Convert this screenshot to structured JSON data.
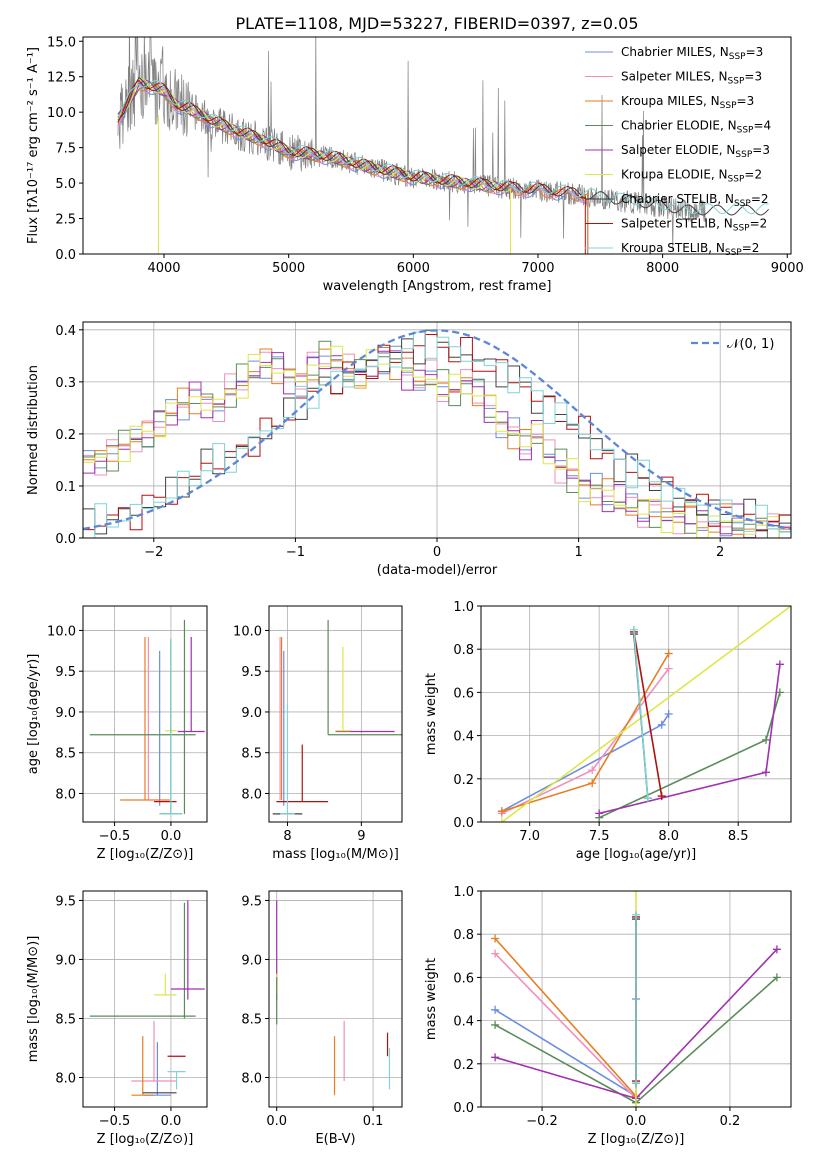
{
  "colors": [
    "#6b8de0",
    "#f08fbd",
    "#e67e22",
    "#5a8c5a",
    "#a030b0",
    "#dfe64a",
    "#404040",
    "#b01010",
    "#7fd4d4"
  ],
  "chart_data": [
    {
      "id": "spectrum",
      "type": "line",
      "title": "PLATE=1108, MJD=53227, FIBERID=0397, z=0.05",
      "xlabel": "wavelength [Angstrom, rest frame]",
      "ylabel": "Flux [fλ10⁻¹⁷ erg cm⁻² s⁻¹ A⁻¹]",
      "xlim": [
        3350,
        9030
      ],
      "ylim": [
        0,
        15.3
      ],
      "xticks": [
        4000,
        5000,
        6000,
        7000,
        8000,
        9000
      ],
      "yticks": [
        0.0,
        2.5,
        5.0,
        7.5,
        10.0,
        12.5,
        15.0
      ],
      "ytick_labels": [
        "0.0",
        "2.5",
        "5.0",
        "7.5",
        "10.0",
        "12.5",
        "15.0"
      ],
      "grid": false,
      "legend_position": "top-right",
      "data_color": "#808080",
      "continuum": {
        "x": [
          3630,
          3700,
          3800,
          3900,
          4000,
          4100,
          4200,
          4300,
          4400,
          4600,
          4800,
          5000,
          5200,
          5400,
          5600,
          5800,
          6000,
          6200,
          6400,
          6600,
          6800,
          7000,
          7200,
          7400,
          7600,
          7800,
          8000,
          8200
        ],
        "y": [
          9.5,
          10.5,
          12.0,
          11.8,
          11.5,
          10.5,
          10.2,
          9.8,
          9.3,
          8.6,
          8.0,
          7.2,
          7.0,
          6.7,
          6.2,
          5.8,
          5.4,
          5.2,
          5.0,
          4.8,
          4.6,
          4.5,
          4.3,
          4.1,
          3.8,
          3.6,
          3.3,
          3.0
        ]
      },
      "series": [
        {
          "name": "Chabrier MILES, N",
          "sub": "SSP",
          "suffix": "=3",
          "end": 7400
        },
        {
          "name": "Salpeter MILES, N",
          "sub": "SSP",
          "suffix": "=3",
          "end": 7400
        },
        {
          "name": "Kroupa MILES, N",
          "sub": "SSP",
          "suffix": "=3",
          "end": 7400
        },
        {
          "name": "Chabrier ELODIE, N",
          "sub": "SSP",
          "suffix": "=4",
          "end": 6780
        },
        {
          "name": "Salpeter ELODIE, N",
          "sub": "SSP",
          "suffix": "=3",
          "end": 6780
        },
        {
          "name": "Kroupa ELODIE, N",
          "sub": "SSP",
          "suffix": "=2",
          "end": 6780
        },
        {
          "name": "Chabrier STELIB, N",
          "sub": "SSP",
          "suffix": "=2",
          "end": 8850
        },
        {
          "name": "Salpeter STELIB, N",
          "sub": "SSP",
          "suffix": "=2",
          "end": 7380
        },
        {
          "name": "Kroupa STELIB, N",
          "sub": "SSP",
          "suffix": "=2",
          "end": 8850
        }
      ]
    },
    {
      "id": "residuals",
      "type": "line",
      "xlabel": "(data-model)/error",
      "ylabel": "Normed distribution",
      "xlim": [
        -2.5,
        2.5
      ],
      "ylim": [
        0,
        0.415
      ],
      "xticks": [
        -2,
        -1,
        0,
        1,
        2
      ],
      "xtick_labels": [
        "−2",
        "−1",
        "0",
        "1",
        "2"
      ],
      "yticks": [
        0.0,
        0.1,
        0.2,
        0.3,
        0.4
      ],
      "ytick_labels": [
        "0.0",
        "0.1",
        "0.2",
        "0.3",
        "0.4"
      ],
      "grid": true,
      "legend_position": "top-right",
      "normal_label": "𝒩(0, 1)",
      "normal_color": "#5b87d8",
      "group_a": [
        0.15,
        0.15,
        0.16,
        0.18,
        0.19,
        0.2,
        0.22,
        0.24,
        0.26,
        0.27,
        0.26,
        0.25,
        0.28,
        0.3,
        0.32,
        0.34,
        0.33,
        0.31,
        0.3,
        0.33,
        0.35,
        0.34,
        0.32,
        0.31,
        0.33,
        0.35,
        0.34,
        0.32,
        0.3,
        0.31,
        0.29,
        0.28,
        0.3,
        0.28,
        0.25,
        0.22,
        0.2,
        0.18,
        0.2,
        0.16,
        0.14,
        0.12,
        0.1,
        0.09,
        0.08,
        0.07,
        0.06,
        0.05,
        0.05,
        0.04,
        0.04,
        0.04,
        0.03,
        0.03,
        0.03,
        0.03,
        0.02,
        0.02,
        0.02,
        0.02
      ],
      "group_b": [
        0.02,
        0.03,
        0.04,
        0.04,
        0.05,
        0.06,
        0.07,
        0.09,
        0.1,
        0.12,
        0.14,
        0.15,
        0.15,
        0.17,
        0.19,
        0.2,
        0.22,
        0.24,
        0.26,
        0.28,
        0.29,
        0.3,
        0.31,
        0.32,
        0.33,
        0.34,
        0.35,
        0.36,
        0.37,
        0.38,
        0.37,
        0.36,
        0.35,
        0.34,
        0.33,
        0.32,
        0.31,
        0.29,
        0.27,
        0.25,
        0.24,
        0.22,
        0.2,
        0.18,
        0.16,
        0.14,
        0.13,
        0.12,
        0.11,
        0.09,
        0.08,
        0.07,
        0.06,
        0.05,
        0.05,
        0.04,
        0.04,
        0.03,
        0.03,
        0.02
      ]
    },
    {
      "id": "age-vs-Z",
      "type": "scatter",
      "xlabel": "Z [log₁₀(Z/Z⊙)]",
      "ylabel": "age  [log₁₀(age/yr)]",
      "xlim": [
        -0.78,
        0.32
      ],
      "ylim": [
        7.65,
        10.3
      ],
      "xticks": [
        -0.5,
        0.0
      ],
      "xtick_labels": [
        "−0.5",
        "0.0"
      ],
      "yticks": [
        8.0,
        8.5,
        9.0,
        9.5,
        10.0
      ],
      "ytick_labels": [
        "8.0",
        "8.5",
        "9.0",
        "9.5",
        "10.0"
      ],
      "grid": true,
      "points": [
        {
          "c": 0,
          "x": -0.1,
          "y": 8.75,
          "xerr": 0,
          "yerr": [
            7.85,
            9.75
          ]
        },
        {
          "c": 1,
          "x": -0.2,
          "y": 8.75,
          "xerr": 0,
          "yerr": [
            7.92,
            9.92
          ]
        },
        {
          "c": 2,
          "x": -0.23,
          "y": 7.92,
          "xerr": 0.22,
          "yerr": [
            7.92,
            9.92
          ]
        },
        {
          "c": 3,
          "x": -0.25,
          "y": 8.72,
          "xerr": 0.47,
          "yerr": [
            8.72,
            8.72
          ]
        },
        {
          "c": 3,
          "x": 0.12,
          "y": 8.72,
          "xerr": 0.0,
          "yerr": [
            7.75,
            10.13
          ]
        },
        {
          "c": 4,
          "x": 0.18,
          "y": 8.76,
          "xerr": 0.12,
          "yerr": [
            8.76,
            9.92
          ]
        },
        {
          "c": 5,
          "x": 0.0,
          "y": 8.77,
          "xerr": 0.05,
          "yerr": [
            8.77,
            9.85
          ]
        },
        {
          "c": 6,
          "x": 0.0,
          "y": 7.75,
          "xerr": 0.1,
          "yerr": [
            7.75,
            9.9
          ]
        },
        {
          "c": 7,
          "x": -0.05,
          "y": 7.9,
          "xerr": 0.1,
          "yerr": [
            7.9,
            7.9
          ]
        },
        {
          "c": 8,
          "x": 0.0,
          "y": 7.75,
          "xerr": 0.1,
          "yerr": [
            7.75,
            9.9
          ]
        }
      ]
    },
    {
      "id": "age-vs-mass",
      "type": "scatter",
      "xlabel": "mass [log₁₀(M/M⊙)]",
      "xlim": [
        7.75,
        9.55
      ],
      "ylim": [
        7.65,
        10.3
      ],
      "xticks": [
        8,
        9
      ],
      "xtick_labels": [
        "8",
        "9"
      ],
      "yticks": [
        8.0,
        8.5,
        9.0,
        9.5,
        10.0
      ],
      "ytick_labels": [
        "8.0",
        "8.5",
        "9.0",
        "9.5",
        "10.0"
      ],
      "grid": true,
      "points": [
        {
          "c": 0,
          "x": 7.95,
          "y": 7.85,
          "xerr": 0,
          "yerr": [
            7.85,
            9.75
          ]
        },
        {
          "c": 1,
          "x": 7.9,
          "y": 7.92,
          "xerr": 0,
          "yerr": [
            7.92,
            9.92
          ]
        },
        {
          "c": 2,
          "x": 7.92,
          "y": 7.92,
          "xerr": 0,
          "yerr": [
            7.92,
            9.92
          ]
        },
        {
          "c": 3,
          "x": 8.55,
          "y": 8.72,
          "xerr": 0,
          "yerr": [
            8.72,
            10.13
          ]
        },
        {
          "c": 3,
          "x": 9.1,
          "y": 8.72,
          "xerr": 0.55,
          "yerr": [
            8.72,
            8.72
          ]
        },
        {
          "c": 4,
          "x": 9.05,
          "y": 8.76,
          "xerr": 0.4,
          "yerr": [
            8.76,
            8.76
          ]
        },
        {
          "c": 5,
          "x": 8.75,
          "y": 8.77,
          "xerr": 0.1,
          "yerr": [
            8.77,
            9.8
          ]
        },
        {
          "c": 6,
          "x": 8.0,
          "y": 7.75,
          "xerr": 0.2,
          "yerr": [
            7.75,
            7.75
          ]
        },
        {
          "c": 7,
          "x": 8.2,
          "y": 7.9,
          "xerr": 0.35,
          "yerr": [
            7.9,
            8.6
          ]
        },
        {
          "c": 8,
          "x": 8.0,
          "y": 7.75,
          "xerr": 0.1,
          "yerr": [
            7.75,
            9.1
          ]
        }
      ]
    },
    {
      "id": "weight-vs-age",
      "type": "line",
      "xlabel": "age  [log₁₀(age/yr)]",
      "ylabel": "mass weight",
      "xlim": [
        6.65,
        8.88
      ],
      "ylim": [
        0,
        1.0
      ],
      "xticks": [
        7.0,
        7.5,
        8.0,
        8.5
      ],
      "xtick_labels": [
        "7.0",
        "7.5",
        "8.0",
        "8.5"
      ],
      "yticks": [
        0.0,
        0.2,
        0.4,
        0.6,
        0.8,
        1.0
      ],
      "ytick_labels": [
        "0.0",
        "0.2",
        "0.4",
        "0.6",
        "0.8",
        "1.0"
      ],
      "grid": true,
      "series": [
        {
          "c": 0,
          "x": [
            6.8,
            7.95,
            8.0
          ],
          "y": [
            0.05,
            0.45,
            0.5
          ]
        },
        {
          "c": 1,
          "x": [
            6.8,
            7.45,
            8.0
          ],
          "y": [
            0.04,
            0.24,
            0.71
          ]
        },
        {
          "c": 2,
          "x": [
            6.8,
            7.45,
            8.0
          ],
          "y": [
            0.05,
            0.18,
            0.78
          ]
        },
        {
          "c": 3,
          "x": [
            7.5,
            8.7,
            8.8
          ],
          "y": [
            0.02,
            0.38,
            0.6
          ]
        },
        {
          "c": 4,
          "x": [
            7.5,
            8.7,
            8.8
          ],
          "y": [
            0.04,
            0.23,
            0.73
          ]
        },
        {
          "c": 5,
          "x": [
            6.8,
            8.88
          ],
          "y": [
            0.0,
            1.0
          ]
        },
        {
          "c": 6,
          "x": [
            7.75,
            7.85
          ],
          "y": [
            0.87,
            0.11
          ]
        },
        {
          "c": 7,
          "x": [
            7.75,
            7.95
          ],
          "y": [
            0.88,
            0.12
          ]
        },
        {
          "c": 8,
          "x": [
            7.75,
            7.85
          ],
          "y": [
            0.89,
            0.11
          ]
        }
      ]
    },
    {
      "id": "mass-vs-Z",
      "type": "scatter",
      "xlabel": "Z [log₁₀(Z/Z⊙)]",
      "ylabel": "mass [log₁₀(M/M⊙)]",
      "xlim": [
        -0.78,
        0.32
      ],
      "ylim": [
        7.75,
        9.58
      ],
      "xticks": [
        -0.5,
        0.0
      ],
      "xtick_labels": [
        "−0.5",
        "0.0"
      ],
      "yticks": [
        8.0,
        8.5,
        9.0,
        9.5
      ],
      "ytick_labels": [
        "8.0",
        "8.5",
        "9.0",
        "9.5"
      ],
      "grid": true,
      "points": [
        {
          "c": 0,
          "x": -0.12,
          "y": 7.85,
          "xerr": 0.12,
          "yerr": [
            7.85,
            8.3
          ]
        },
        {
          "c": 1,
          "x": -0.15,
          "y": 7.97,
          "xerr": 0.2,
          "yerr": [
            7.97,
            8.48
          ]
        },
        {
          "c": 2,
          "x": -0.25,
          "y": 7.85,
          "xerr": 0.1,
          "yerr": [
            7.85,
            8.35
          ]
        },
        {
          "c": 3,
          "x": -0.25,
          "y": 8.52,
          "xerr": 0.47,
          "yerr": [
            8.52,
            8.52
          ]
        },
        {
          "c": 3,
          "x": 0.12,
          "y": 8.52,
          "xerr": 0,
          "yerr": [
            8.5,
            9.48
          ]
        },
        {
          "c": 4,
          "x": 0.15,
          "y": 8.75,
          "xerr": 0.15,
          "yerr": [
            8.66,
            9.5
          ]
        },
        {
          "c": 5,
          "x": -0.05,
          "y": 8.7,
          "xerr": 0.1,
          "yerr": [
            8.7,
            8.88
          ]
        },
        {
          "c": 6,
          "x": -0.1,
          "y": 7.87,
          "xerr": 0.15,
          "yerr": [
            7.87,
            7.87
          ]
        },
        {
          "c": 7,
          "x": 0.05,
          "y": 8.18,
          "xerr": 0.08,
          "yerr": [
            8.18,
            8.18
          ]
        },
        {
          "c": 8,
          "x": 0.05,
          "y": 8.05,
          "xerr": 0.08,
          "yerr": [
            7.9,
            8.05
          ]
        }
      ]
    },
    {
      "id": "mass-vs-ebv",
      "type": "scatter",
      "xlabel": "E(B-V)",
      "xlim": [
        -0.008,
        0.13
      ],
      "ylim": [
        7.75,
        9.58
      ],
      "xticks": [
        0.0,
        0.1
      ],
      "xtick_labels": [
        "0.0",
        "0.1"
      ],
      "yticks": [
        8.0,
        8.5,
        9.0,
        9.5
      ],
      "ytick_labels": [
        "8.0",
        "8.5",
        "9.0",
        "9.5"
      ],
      "grid": true,
      "points": [
        {
          "c": 2,
          "x": 0.06,
          "y": 7.85,
          "xerr": 0,
          "yerr": [
            7.85,
            8.35
          ]
        },
        {
          "c": 1,
          "x": 0.07,
          "y": 7.97,
          "xerr": 0,
          "yerr": [
            7.97,
            8.48
          ]
        },
        {
          "c": 4,
          "x": 0.0,
          "y": 8.75,
          "xerr": 0,
          "yerr": [
            8.66,
            9.5
          ]
        },
        {
          "c": 5,
          "x": 0.0,
          "y": 8.7,
          "xerr": 0,
          "yerr": [
            8.7,
            8.88
          ]
        },
        {
          "c": 3,
          "x": 0.0,
          "y": 8.52,
          "xerr": 0,
          "yerr": [
            8.45,
            8.85
          ]
        },
        {
          "c": 7,
          "x": 0.115,
          "y": 8.18,
          "xerr": 0,
          "yerr": [
            8.18,
            8.38
          ]
        },
        {
          "c": 8,
          "x": 0.117,
          "y": 8.05,
          "xerr": 0,
          "yerr": [
            7.9,
            8.25
          ]
        }
      ]
    },
    {
      "id": "weight-vs-Z",
      "type": "line",
      "xlabel": "Z [log₁₀(Z/Z⊙)]",
      "ylabel": "mass weight",
      "xlim": [
        -0.33,
        0.33
      ],
      "ylim": [
        0,
        1.0
      ],
      "xticks": [
        -0.2,
        0.0,
        0.2
      ],
      "xtick_labels": [
        "−0.2",
        "0.0",
        "0.2"
      ],
      "yticks": [
        0.0,
        0.2,
        0.4,
        0.6,
        0.8,
        1.0
      ],
      "ytick_labels": [
        "0.0",
        "0.2",
        "0.4",
        "0.6",
        "0.8",
        "1.0"
      ],
      "grid": true,
      "series": [
        {
          "c": 0,
          "x": [
            -0.3,
            0.0,
            0.0
          ],
          "y": [
            0.45,
            0.05,
            0.5
          ]
        },
        {
          "c": 1,
          "x": [
            -0.3,
            0.0
          ],
          "y": [
            0.71,
            0.04
          ]
        },
        {
          "c": 2,
          "x": [
            -0.3,
            0.0
          ],
          "y": [
            0.78,
            0.05
          ]
        },
        {
          "c": 3,
          "x": [
            -0.3,
            0.0,
            0.3
          ],
          "y": [
            0.38,
            0.02,
            0.6
          ]
        },
        {
          "c": 4,
          "x": [
            -0.3,
            0.0,
            0.3
          ],
          "y": [
            0.23,
            0.04,
            0.73
          ]
        },
        {
          "c": 5,
          "x": [
            0.0,
            0.0
          ],
          "y": [
            0.0,
            1.0
          ]
        },
        {
          "c": 6,
          "x": [
            0.0,
            0.0
          ],
          "y": [
            0.11,
            0.87
          ]
        },
        {
          "c": 7,
          "x": [
            0.0,
            0.0
          ],
          "y": [
            0.12,
            0.88
          ]
        },
        {
          "c": 8,
          "x": [
            0.0,
            0.0
          ],
          "y": [
            0.11,
            0.89
          ]
        }
      ]
    }
  ]
}
